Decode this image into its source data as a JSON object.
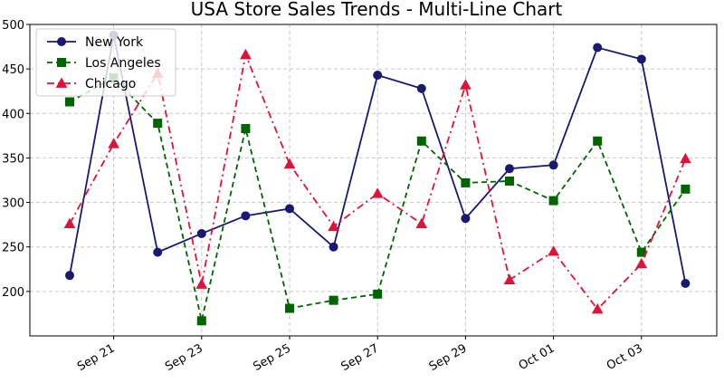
{
  "chart_data": {
    "type": "line",
    "title": "USA Store Sales Trends - Multi-Line Chart",
    "xlabel": "",
    "ylabel": "",
    "x": [
      "Sep 20",
      "Sep 21",
      "Sep 22",
      "Sep 23",
      "Sep 24",
      "Sep 25",
      "Sep 26",
      "Sep 27",
      "Sep 28",
      "Sep 29",
      "Sep 30",
      "Oct 01",
      "Oct 02",
      "Oct 03",
      "Oct 04"
    ],
    "x_tick_labels": [
      "Sep 21",
      "Sep 23",
      "Sep 25",
      "Sep 27",
      "Sep 29",
      "Oct 01",
      "Oct 03"
    ],
    "ylim": [
      150,
      500
    ],
    "y_ticks": [
      200,
      250,
      300,
      350,
      400,
      450,
      500
    ],
    "grid": true,
    "legend_position": "top-left",
    "series": [
      {
        "name": "New York",
        "color": "#191970",
        "marker": "circle",
        "linestyle": "solid",
        "values": [
          218,
          488,
          244,
          265,
          285,
          293,
          250,
          443,
          428,
          282,
          338,
          342,
          474,
          461,
          209
        ]
      },
      {
        "name": "Los Angeles",
        "color": "#006400",
        "marker": "square",
        "linestyle": "dashed",
        "values": [
          413,
          440,
          389,
          167,
          383,
          181,
          190,
          197,
          369,
          322,
          324,
          302,
          369,
          244,
          315
        ]
      },
      {
        "name": "Chicago",
        "color": "#dc143c",
        "marker": "triangle",
        "linestyle": "dashdot",
        "values": [
          276,
          366,
          445,
          208,
          466,
          343,
          273,
          310,
          276,
          432,
          213,
          245,
          180,
          231,
          349
        ]
      }
    ]
  }
}
